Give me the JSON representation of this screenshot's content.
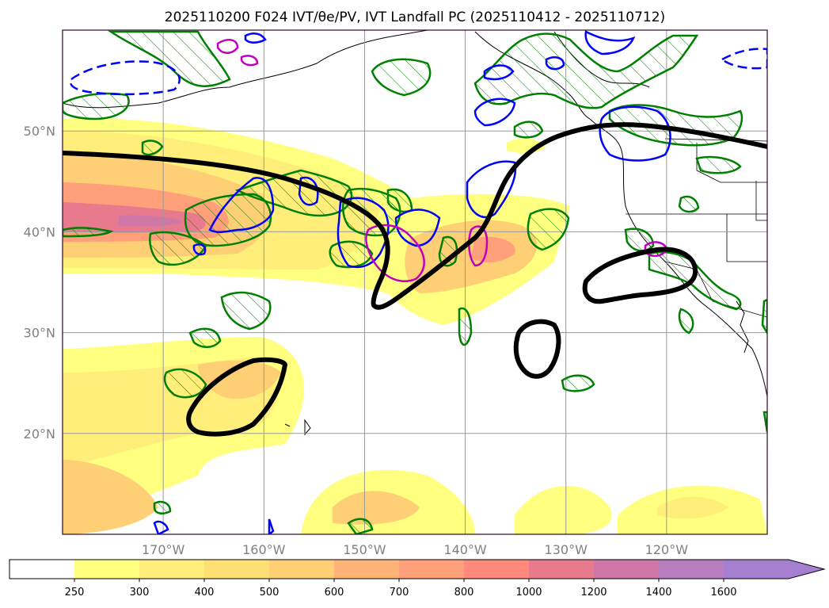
{
  "title": "2025110200 F024 IVT/θe/PV, IVT Landfall PC (2025110412 - 2025110712)",
  "map": {
    "lat_range": [
      10,
      60
    ],
    "lon_range": [
      -180,
      -110
    ],
    "lat_ticks": [
      {
        "value": 20,
        "label": "20°N"
      },
      {
        "value": 30,
        "label": "30°N"
      },
      {
        "value": 40,
        "label": "40°N"
      },
      {
        "value": 50,
        "label": "50°N"
      }
    ],
    "lon_ticks": [
      {
        "value": -170,
        "label": "170°W"
      },
      {
        "value": -160,
        "label": "160°W"
      },
      {
        "value": -150,
        "label": "150°W"
      },
      {
        "value": -140,
        "label": "140°W"
      },
      {
        "value": -130,
        "label": "130°W"
      },
      {
        "value": -120,
        "label": "120°W"
      }
    ],
    "grid": true
  },
  "colorbar": {
    "levels": [
      "250",
      "300",
      "400",
      "500",
      "600",
      "700",
      "800",
      "1000",
      "1200",
      "1400",
      "1600"
    ],
    "colors": [
      "#ffffff",
      "#ffff80",
      "#ffee7a",
      "#ffdf73",
      "#ffcf75",
      "#ffb577",
      "#ffa07a",
      "#ff8a7c",
      "#e87a8e",
      "#cf78a8",
      "#b87cbf",
      "#a67fd0"
    ],
    "extend": "max"
  },
  "colors": {
    "pc_contour": "#000000",
    "theta_e": "#008000",
    "pv_positive": "#0000ff",
    "pv_other": "#c000c0"
  }
}
